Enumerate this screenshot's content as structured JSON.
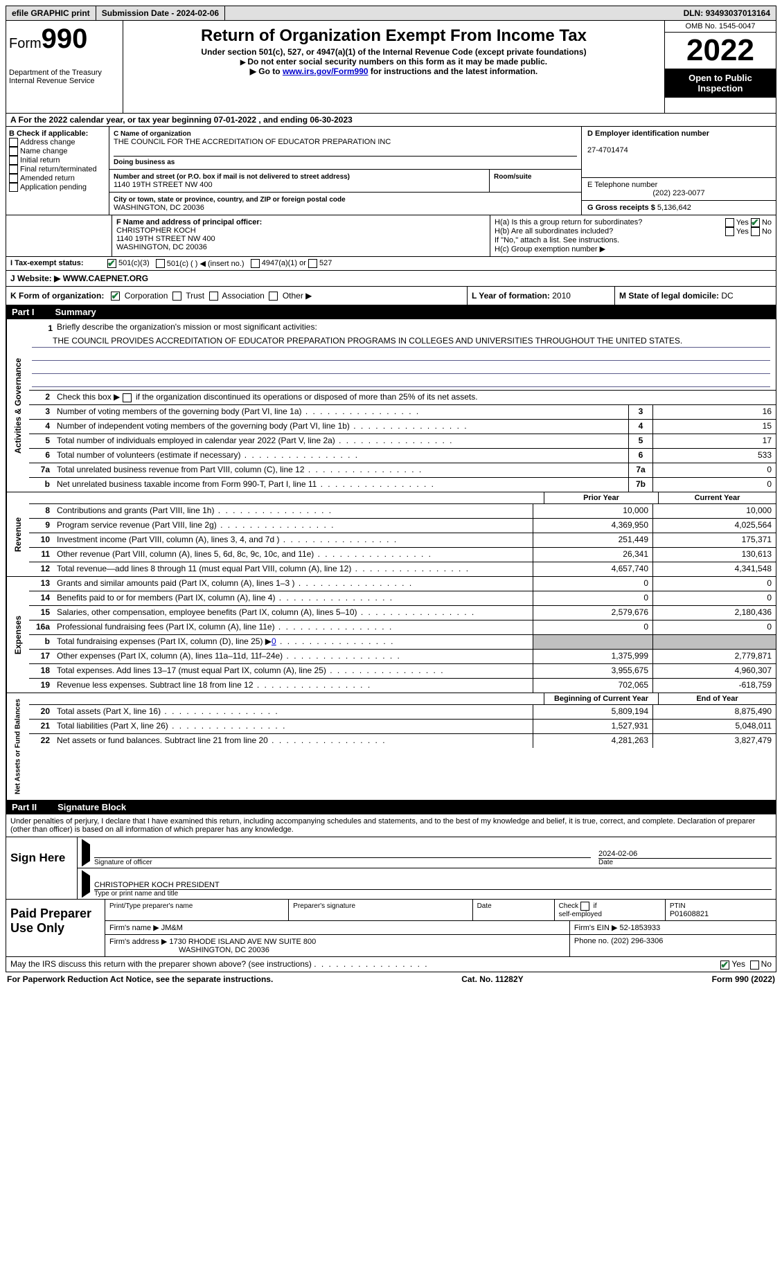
{
  "topbar": {
    "efile": "efile GRAPHIC print",
    "subdate_label": "Submission Date - ",
    "subdate": "2024-02-06",
    "dln_label": "DLN: ",
    "dln": "93493037013164"
  },
  "header": {
    "form_prefix": "Form",
    "form_number": "990",
    "dept": "Department of the Treasury\nInternal Revenue Service",
    "title": "Return of Organization Exempt From Income Tax",
    "subtitle": "Under section 501(c), 527, or 4947(a)(1) of the Internal Revenue Code (except private foundations)",
    "note1": "Do not enter social security numbers on this form as it may be made public.",
    "note2_pre": "Go to ",
    "note2_link": "www.irs.gov/Form990",
    "note2_post": " for instructions and the latest information.",
    "omb": "OMB No. 1545-0047",
    "year": "2022",
    "inspection": "Open to Public Inspection"
  },
  "year_line": {
    "prefix": "A For the 2022 calendar year, or tax year beginning ",
    "begin": "07-01-2022",
    "mid": "   , and ending ",
    "end": "06-30-2023"
  },
  "section_b": {
    "title": "B Check if applicable:",
    "items": [
      "Address change",
      "Name change",
      "Initial return",
      "Final return/terminated",
      "Amended return",
      "Application pending"
    ]
  },
  "section_c": {
    "name_label": "C Name of organization",
    "name": "THE COUNCIL FOR THE ACCREDITATION OF EDUCATOR PREPARATION INC",
    "dba_label": "Doing business as",
    "dba": "",
    "addr_label": "Number and street (or P.O. box if mail is not delivered to street address)",
    "addr": "1140 19TH STREET NW 400",
    "room_label": "Room/suite",
    "room": "",
    "city_label": "City or town, state or province, country, and ZIP or foreign postal code",
    "city": "WASHINGTON, DC  20036"
  },
  "section_d": {
    "ein_label": "D Employer identification number",
    "ein": "27-4701474",
    "phone_label": "E Telephone number",
    "phone": "(202) 223-0077",
    "gross_label": "G Gross receipts $ ",
    "gross": "5,136,642"
  },
  "section_f": {
    "label": "F  Name and address of principal officer:",
    "name": "CHRISTOPHER KOCH",
    "addr1": "1140 19TH STREET NW 400",
    "addr2": "WASHINGTON, DC  20036"
  },
  "section_h": {
    "ha": "H(a)  Is this a group return for subordinates?",
    "hb": "H(b)  Are all subordinates included?",
    "hb_note": "If \"No,\" attach a list. See instructions.",
    "hc": "H(c)  Group exemption number ▶"
  },
  "taxex": {
    "label": "I   Tax-exempt status:",
    "opts": [
      "501(c)(3)",
      "501(c) (  ) ◀ (insert no.)",
      "4947(a)(1) or",
      "527"
    ]
  },
  "website": {
    "label": "J   Website: ▶  ",
    "value": "WWW.CAEPNET.ORG"
  },
  "formorg": {
    "k": "K Form of organization:",
    "opts": [
      "Corporation",
      "Trust",
      "Association",
      "Other ▶"
    ],
    "l_label": "L Year of formation: ",
    "l": "2010",
    "m_label": "M State of legal domicile: ",
    "m": "DC"
  },
  "part1": {
    "header_num": "Part I",
    "header_title": "Summary",
    "mission_label": "Briefly describe the organization's mission or most significant activities:",
    "mission": "THE COUNCIL PROVIDES ACCREDITATION OF EDUCATOR PREPARATION PROGRAMS IN COLLEGES AND UNIVERSITIES THROUGHOUT THE UNITED STATES.",
    "l2": "Check this box ▶         if the organization discontinued its operations or disposed of more than 25% of its net assets.",
    "lines_a": [
      {
        "n": "3",
        "t": "Number of voting members of the governing body (Part VI, line 1a)",
        "b": "3",
        "v": "16"
      },
      {
        "n": "4",
        "t": "Number of independent voting members of the governing body (Part VI, line 1b)",
        "b": "4",
        "v": "15"
      },
      {
        "n": "5",
        "t": "Total number of individuals employed in calendar year 2022 (Part V, line 2a)",
        "b": "5",
        "v": "17"
      },
      {
        "n": "6",
        "t": "Total number of volunteers (estimate if necessary)",
        "b": "6",
        "v": "533"
      },
      {
        "n": "7a",
        "t": "Total unrelated business revenue from Part VIII, column (C), line 12",
        "b": "7a",
        "v": "0"
      },
      {
        "n": "b",
        "t": "Net unrelated business taxable income from Form 990-T, Part I, line 11",
        "b": "7b",
        "v": "0"
      }
    ],
    "col_prior": "Prior Year",
    "col_current": "Current Year",
    "revenue": [
      {
        "n": "8",
        "t": "Contributions and grants (Part VIII, line 1h)",
        "p": "10,000",
        "c": "10,000"
      },
      {
        "n": "9",
        "t": "Program service revenue (Part VIII, line 2g)",
        "p": "4,369,950",
        "c": "4,025,564"
      },
      {
        "n": "10",
        "t": "Investment income (Part VIII, column (A), lines 3, 4, and 7d )",
        "p": "251,449",
        "c": "175,371"
      },
      {
        "n": "11",
        "t": "Other revenue (Part VIII, column (A), lines 5, 6d, 8c, 9c, 10c, and 11e)",
        "p": "26,341",
        "c": "130,613"
      },
      {
        "n": "12",
        "t": "Total revenue—add lines 8 through 11 (must equal Part VIII, column (A), line 12)",
        "p": "4,657,740",
        "c": "4,341,548"
      }
    ],
    "expenses": [
      {
        "n": "13",
        "t": "Grants and similar amounts paid (Part IX, column (A), lines 1–3 )",
        "p": "0",
        "c": "0"
      },
      {
        "n": "14",
        "t": "Benefits paid to or for members (Part IX, column (A), line 4)",
        "p": "0",
        "c": "0"
      },
      {
        "n": "15",
        "t": "Salaries, other compensation, employee benefits (Part IX, column (A), lines 5–10)",
        "p": "2,579,676",
        "c": "2,180,436"
      },
      {
        "n": "16a",
        "t": "Professional fundraising fees (Part IX, column (A), line 11e)",
        "p": "0",
        "c": "0"
      },
      {
        "n": "b",
        "t": "Total fundraising expenses (Part IX, column (D), line 25) ▶",
        "p": "shaded",
        "c": "shaded",
        "extra": "0"
      },
      {
        "n": "17",
        "t": "Other expenses (Part IX, column (A), lines 11a–11d, 11f–24e)",
        "p": "1,375,999",
        "c": "2,779,871"
      },
      {
        "n": "18",
        "t": "Total expenses. Add lines 13–17 (must equal Part IX, column (A), line 25)",
        "p": "3,955,675",
        "c": "4,960,307"
      },
      {
        "n": "19",
        "t": "Revenue less expenses. Subtract line 18 from line 12",
        "p": "702,065",
        "c": "-618,759"
      }
    ],
    "col_begin": "Beginning of Current Year",
    "col_end": "End of Year",
    "netassets": [
      {
        "n": "20",
        "t": "Total assets (Part X, line 16)",
        "p": "5,809,194",
        "c": "8,875,490"
      },
      {
        "n": "21",
        "t": "Total liabilities (Part X, line 26)",
        "p": "1,527,931",
        "c": "5,048,011"
      },
      {
        "n": "22",
        "t": "Net assets or fund balances. Subtract line 21 from line 20",
        "p": "4,281,263",
        "c": "3,827,479"
      }
    ],
    "vlabels": {
      "gov": "Activities & Governance",
      "rev": "Revenue",
      "exp": "Expenses",
      "net": "Net Assets or Fund Balances"
    }
  },
  "part2": {
    "header_num": "Part II",
    "header_title": "Signature Block",
    "declaration": "Under penalties of perjury, I declare that I have examined this return, including accompanying schedules and statements, and to the best of my knowledge and belief, it is true, correct, and complete. Declaration of preparer (other than officer) is based on all information of which preparer has any knowledge.",
    "sign_here": "Sign Here",
    "sig_officer": "Signature of officer",
    "sig_date_label": "Date",
    "sig_date": "2024-02-06",
    "officer_name": "CHRISTOPHER KOCH  PRESIDENT",
    "officer_label": "Type or print name and title",
    "paid": "Paid Preparer Use Only",
    "prep_name_label": "Print/Type preparer's name",
    "prep_name": "",
    "prep_sig_label": "Preparer's signature",
    "date_label": "Date",
    "check_self": "Check          if self-employed",
    "ptin_label": "PTIN",
    "ptin": "P01608821",
    "firm_name_label": "Firm's name    ▶ ",
    "firm_name": "JM&M",
    "firm_ein_label": "Firm's EIN ▶ ",
    "firm_ein": "52-1853933",
    "firm_addr_label": "Firm's address ▶ ",
    "firm_addr1": "1730 RHODE ISLAND AVE NW SUITE 800",
    "firm_addr2": "WASHINGTON, DC  20036",
    "firm_phone_label": "Phone no. ",
    "firm_phone": "(202) 296-3306",
    "discuss": "May the IRS discuss this return with the preparer shown above? (see instructions)"
  },
  "footer": {
    "paperwork": "For Paperwork Reduction Act Notice, see the separate instructions.",
    "cat": "Cat. No. 11282Y",
    "form": "Form 990 (2022)"
  }
}
